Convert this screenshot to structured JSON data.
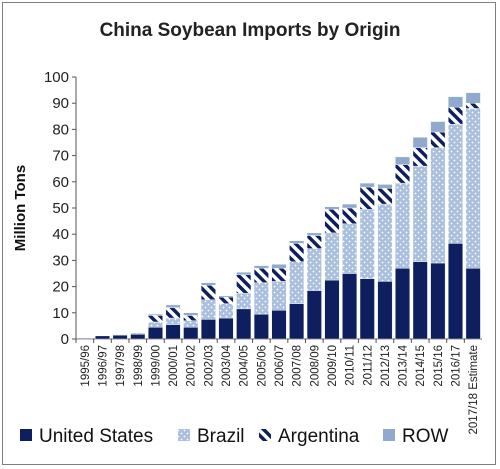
{
  "chart_data": {
    "type": "bar",
    "stacked": true,
    "title": "China Soybean Imports by Origin",
    "xlabel": "",
    "ylabel": "Million Tons",
    "ylim": [
      0,
      100
    ],
    "yticks": [
      0,
      10,
      20,
      30,
      40,
      50,
      60,
      70,
      80,
      90,
      100
    ],
    "grid": false,
    "legend_position": "bottom",
    "categories": [
      "1995/96",
      "1996/97",
      "1997/98",
      "1998/99",
      "1999/00",
      "2000/01",
      "2001/02",
      "2002/03",
      "2003/04",
      "2004/05",
      "2005/06",
      "2006/07",
      "2007/08",
      "2008/09",
      "2009/10",
      "2010/11",
      "2011/12",
      "2012/13",
      "2013/14",
      "2014/15",
      "2015/16",
      "2016/17",
      "2017/18 Estimate"
    ],
    "series": [
      {
        "name": "United States",
        "color": "#0d1f5e",
        "pattern": "solid",
        "values": [
          0.3,
          1.2,
          1.5,
          1.8,
          4.5,
          5.5,
          4.5,
          7.5,
          8.0,
          11.5,
          9.5,
          11.0,
          13.5,
          18.5,
          22.5,
          25.0,
          23.0,
          22.0,
          27.0,
          29.5,
          29.0,
          36.5,
          27.0
        ]
      },
      {
        "name": "Brazil",
        "color": "#a9bfdc",
        "pattern": "dots",
        "values": [
          0.0,
          0.1,
          0.2,
          0.5,
          2.0,
          2.5,
          2.5,
          7.5,
          5.5,
          6.0,
          12.0,
          11.0,
          16.0,
          16.0,
          18.0,
          19.0,
          26.5,
          29.5,
          32.5,
          36.5,
          44.0,
          45.5,
          61.0
        ]
      },
      {
        "name": "Argentina",
        "color": "#0d1f5e",
        "pattern": "stripes",
        "values": [
          0.0,
          0.0,
          0.0,
          0.0,
          2.5,
          4.0,
          2.0,
          5.5,
          2.5,
          7.0,
          5.5,
          5.0,
          7.0,
          5.0,
          9.0,
          6.0,
          8.5,
          6.0,
          7.0,
          7.0,
          6.0,
          6.5,
          2.0
        ]
      },
      {
        "name": "ROW",
        "color": "#8faacd",
        "pattern": "solid",
        "values": [
          0.0,
          0.0,
          0.0,
          0.0,
          0.5,
          1.0,
          1.0,
          1.0,
          0.5,
          1.0,
          1.0,
          1.5,
          1.0,
          1.0,
          1.0,
          1.5,
          1.5,
          1.5,
          3.0,
          4.0,
          4.0,
          4.0,
          4.0
        ]
      }
    ]
  }
}
